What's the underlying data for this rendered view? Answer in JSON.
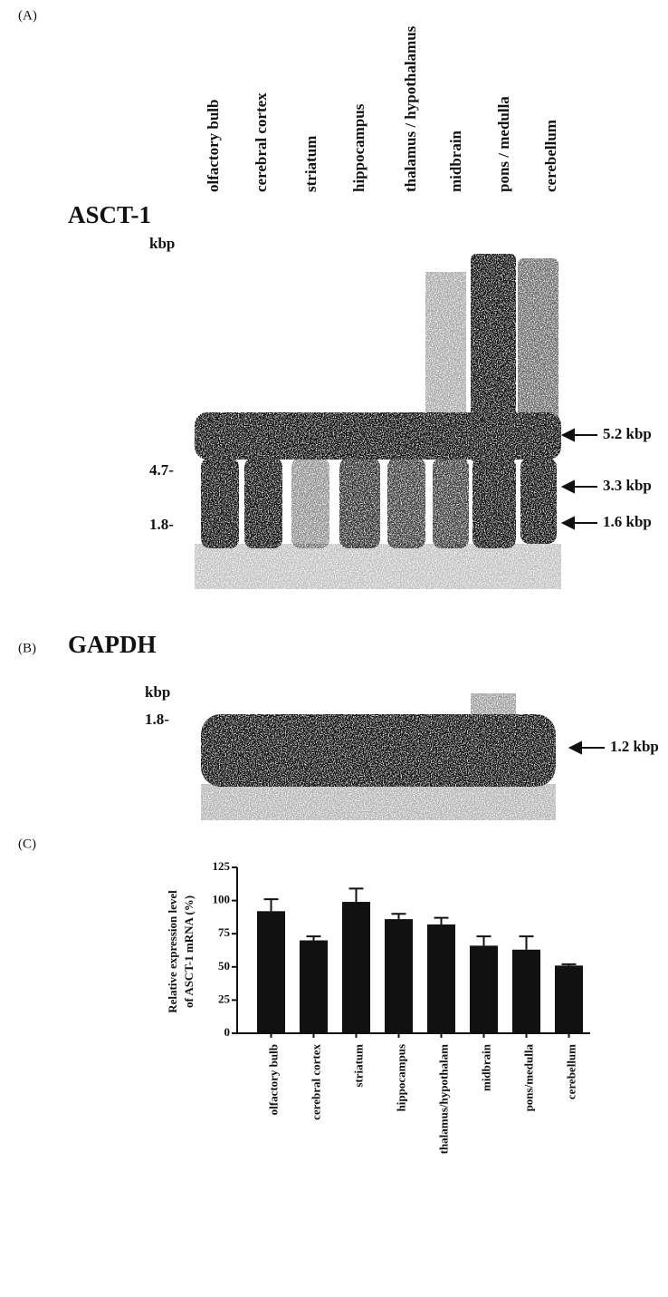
{
  "panel_a": {
    "label": "(A)",
    "title": "ASCT-1",
    "unit": "kbp",
    "lanes": [
      "olfactory bulb",
      "cerebral cortex",
      "striatum",
      "hippocampus",
      "thalamus / hypothalamus",
      "midbrain",
      "pons / medulla",
      "cerebellum"
    ],
    "markers": [
      "4.7-",
      "1.8-"
    ],
    "bands": [
      "5.2 kbp",
      "3.3 kbp",
      "1.6 kbp"
    ]
  },
  "panel_b": {
    "label": "(B)",
    "title": "GAPDH",
    "unit": "kbp",
    "markers": [
      "1.8-"
    ],
    "bands": [
      "1.2 kbp"
    ]
  },
  "chart_data": {
    "type": "bar",
    "label": "(C)",
    "ylabel": [
      "Relative expression level",
      "of ASCT-1 mRNA (%)"
    ],
    "categories": [
      "olfactory bulb",
      "cerebral cortex",
      "striatum",
      "hippocampus",
      "thalamus/hypothalam",
      "midbrain",
      "pons/medulla",
      "cerebellum"
    ],
    "values": [
      92,
      70,
      99,
      86,
      82,
      66,
      63,
      51
    ],
    "errors": [
      9,
      3,
      10,
      4,
      5,
      7,
      10,
      1
    ],
    "color": "#111111",
    "ylim": [
      0,
      125
    ],
    "yticks": [
      0,
      25,
      50,
      75,
      100,
      125
    ]
  }
}
